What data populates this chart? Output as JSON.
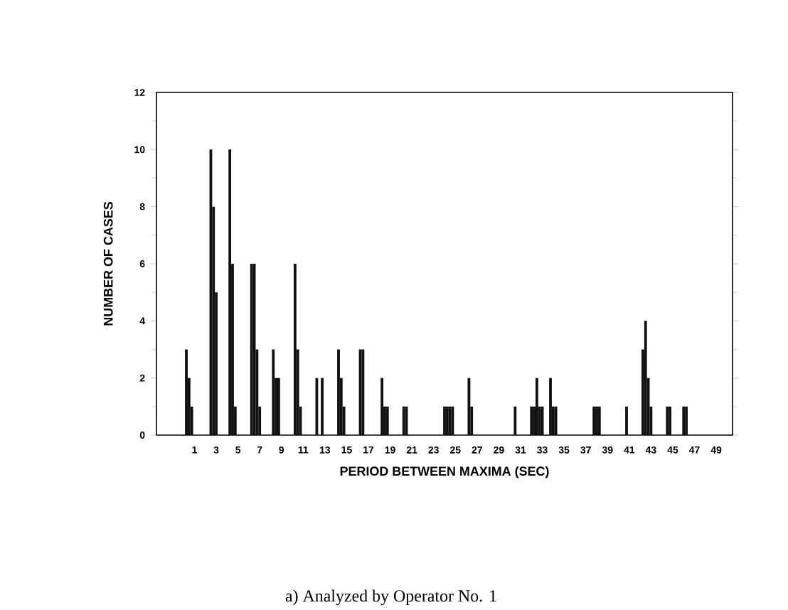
{
  "chart_data": {
    "type": "bar",
    "xlabel": "PERIOD BETWEEN MAXIMA (SEC)",
    "ylabel": "NUMBER OF CASES",
    "annotations": [
      "a)  Analyzed by Operator No. 1"
    ],
    "x": [
      0.25,
      0.5,
      0.75,
      2.5,
      2.75,
      3.0,
      4.25,
      4.5,
      4.75,
      6.25,
      6.5,
      6.75,
      7.0,
      8.25,
      8.5,
      8.75,
      10.25,
      10.5,
      10.75,
      12.25,
      12.75,
      14.25,
      14.5,
      14.75,
      16.25,
      16.5,
      18.25,
      18.5,
      18.75,
      20.25,
      20.5,
      24.0,
      24.25,
      24.5,
      24.75,
      26.25,
      26.5,
      30.5,
      32.0,
      32.25,
      32.5,
      32.75,
      33.0,
      33.75,
      34.0,
      34.25,
      37.75,
      38.0,
      38.25,
      40.75,
      42.25,
      42.5,
      42.75,
      43.0,
      44.5,
      44.75,
      46.0,
      46.25
    ],
    "values": [
      3,
      2,
      1,
      10,
      8,
      5,
      10,
      6,
      1,
      6,
      6,
      3,
      1,
      3,
      2,
      2,
      6,
      3,
      1,
      2,
      2,
      3,
      2,
      1,
      3,
      3,
      2,
      1,
      1,
      1,
      1,
      1,
      1,
      1,
      1,
      2,
      1,
      1,
      1,
      1,
      2,
      1,
      1,
      2,
      1,
      1,
      1,
      1,
      1,
      1,
      3,
      4,
      2,
      1,
      1,
      1,
      1,
      1
    ],
    "color": "#111111",
    "xlim": [
      -2.5,
      50.5
    ],
    "ylim": [
      0,
      12
    ],
    "yticks": [
      0,
      2,
      4,
      6,
      8,
      10,
      12
    ],
    "xticks": [
      1,
      3,
      5,
      7,
      9,
      11,
      13,
      15,
      17,
      19,
      21,
      23,
      25,
      27,
      29,
      31,
      33,
      35,
      37,
      39,
      41,
      43,
      45,
      47,
      49
    ]
  }
}
